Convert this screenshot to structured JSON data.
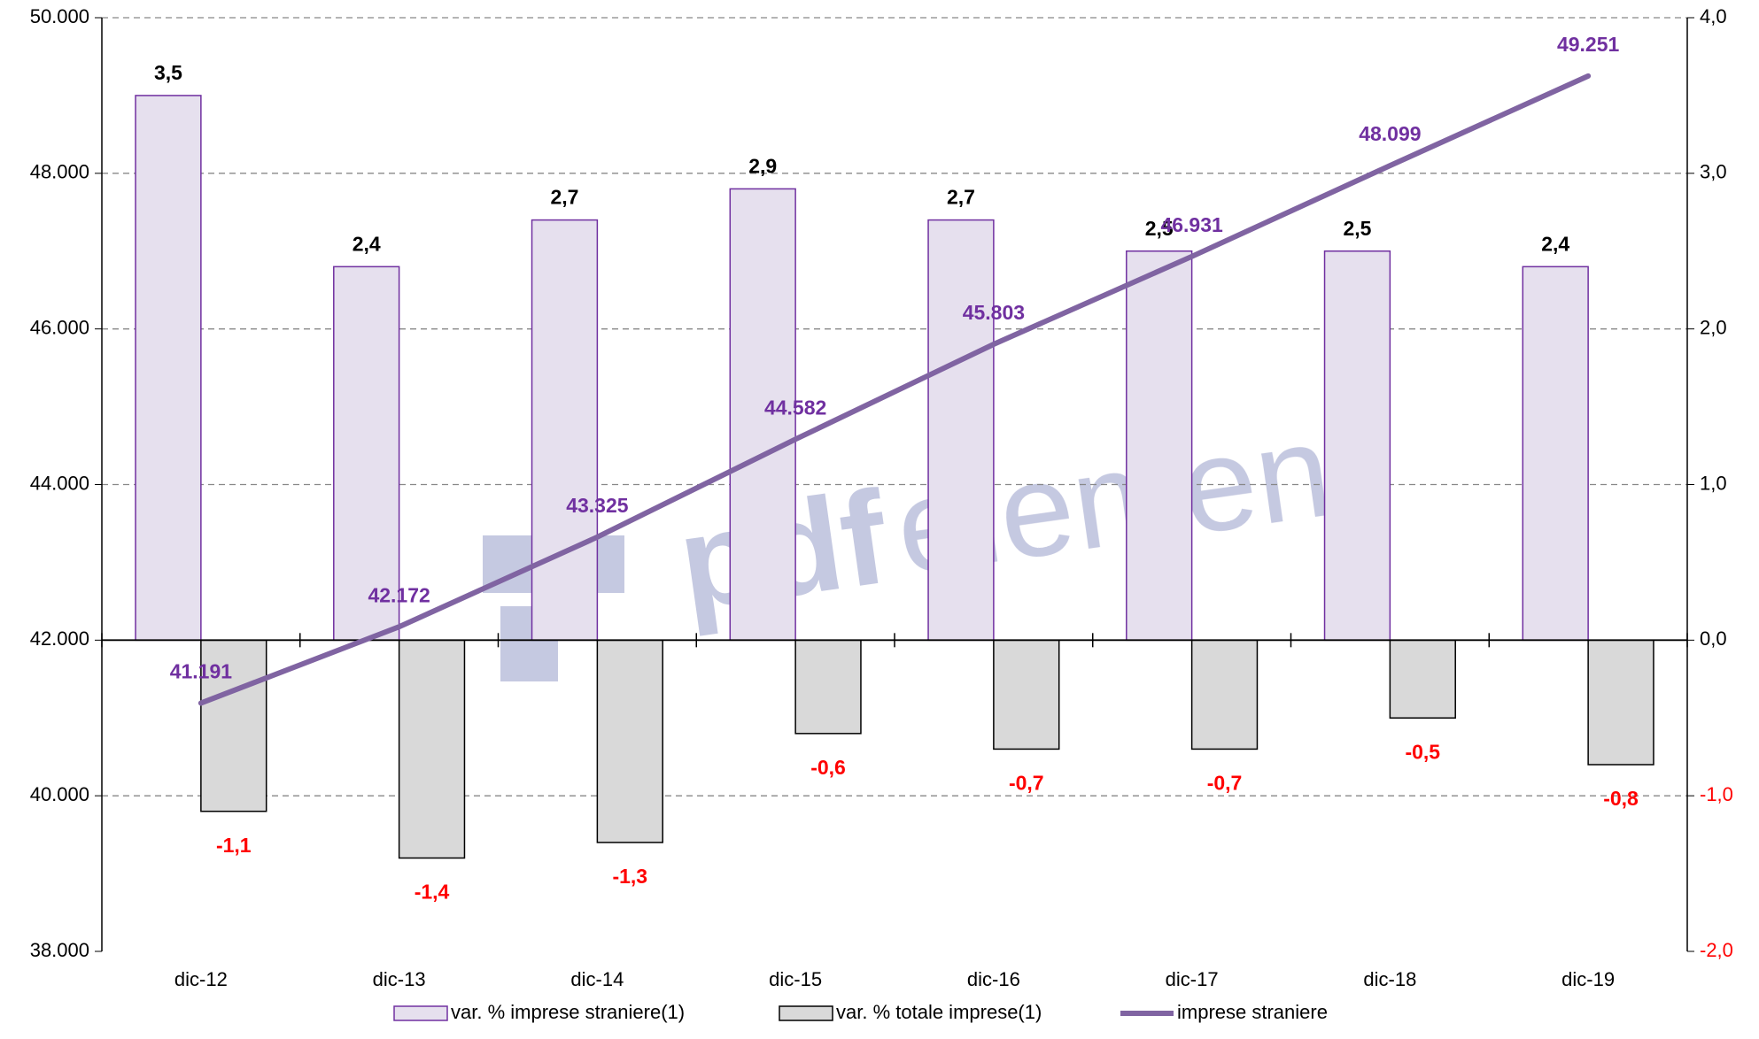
{
  "chart_data": {
    "type": "bar",
    "categories": [
      "dic-12",
      "dic-13",
      "dic-14",
      "dic-15",
      "dic-16",
      "dic-17",
      "dic-18",
      "dic-19"
    ],
    "series": [
      {
        "name": "var. % imprese straniere(1)",
        "type": "bar",
        "axis": "y2",
        "color": "#e6e0ee",
        "stroke": "#7030a0",
        "values": [
          3.5,
          2.4,
          2.7,
          2.9,
          2.7,
          2.5,
          2.5,
          2.4
        ],
        "value_labels": [
          "3,5",
          "2,4",
          "2,7",
          "2,9",
          "2,7",
          "2,5",
          "2,5",
          "2,4"
        ]
      },
      {
        "name": "var. % totale imprese(1)",
        "type": "bar",
        "axis": "y2",
        "color": "#d9d9d9",
        "stroke": "#000000",
        "values": [
          -1.1,
          -1.4,
          -1.3,
          -0.6,
          -0.7,
          -0.7,
          -0.5,
          -0.8
        ],
        "value_labels": [
          "-1,1",
          "-1,4",
          "-1,3",
          "-0,6",
          "-0,7",
          "-0,7",
          "-0,5",
          "-0,8"
        ]
      },
      {
        "name": "imprese straniere",
        "type": "line",
        "axis": "y",
        "color": "#8064a2",
        "values": [
          41191,
          42172,
          43325,
          44582,
          45803,
          46931,
          48099,
          49251
        ],
        "value_labels": [
          "41.191",
          "42.172",
          "43.325",
          "44.582",
          "45.803",
          "46.931",
          "48.099",
          "49.251"
        ]
      }
    ],
    "ylim": [
      38000,
      50000
    ],
    "yticks": [
      {
        "value": 38000,
        "label": "38.000"
      },
      {
        "value": 40000,
        "label": "40.000"
      },
      {
        "value": 42000,
        "label": "42.000"
      },
      {
        "value": 44000,
        "label": "44.000"
      },
      {
        "value": 46000,
        "label": "46.000"
      },
      {
        "value": 48000,
        "label": "48.000"
      },
      {
        "value": 50000,
        "label": "50.000"
      }
    ],
    "y2lim": [
      -2,
      4
    ],
    "y2ticks": [
      {
        "value": -2,
        "label": "-2,0"
      },
      {
        "value": -1,
        "label": "-1,0"
      },
      {
        "value": 0,
        "label": "0,0"
      },
      {
        "value": 1,
        "label": "1,0"
      },
      {
        "value": 2,
        "label": "2,0"
      },
      {
        "value": 3,
        "label": "3,0"
      },
      {
        "value": 4,
        "label": "4,0"
      }
    ],
    "grid": true,
    "legend": "bottom",
    "watermark": [
      "pdf",
      "element"
    ]
  }
}
